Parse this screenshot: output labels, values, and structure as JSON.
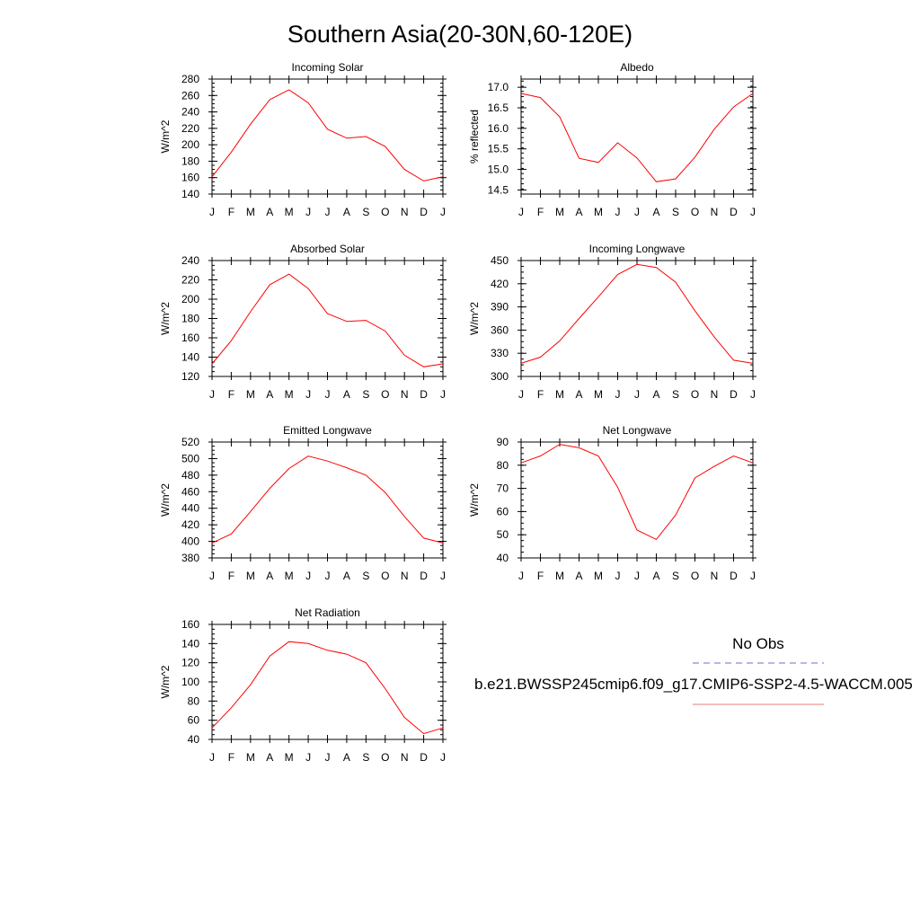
{
  "figure": {
    "title": "Southern Asia(20-30N,60-120E)"
  },
  "legend": {
    "entries": [
      {
        "label": "No Obs",
        "color": "#6b6bd6",
        "style": "dashed"
      },
      {
        "label": "b.e21.BWSSP245cmip6.f09_g17.CMIP6-SSP2-4.5-WACCM.005",
        "color": "#e87a7a",
        "style": "solid"
      }
    ]
  },
  "chart_data": [
    {
      "type": "line",
      "title": "Incoming Solar",
      "ylabel": "W/m^2",
      "categories": [
        "J",
        "F",
        "M",
        "A",
        "M",
        "J",
        "J",
        "A",
        "S",
        "O",
        "N",
        "D",
        "J"
      ],
      "ylim": [
        140,
        280
      ],
      "yticks": [
        140,
        160,
        180,
        200,
        220,
        240,
        260,
        280
      ],
      "ytick_labels": [
        "140",
        "160",
        "180",
        "200",
        "220",
        "240",
        "260",
        "280"
      ],
      "series": [
        {
          "color": "#ff0000",
          "values": [
            161,
            191,
            225,
            255,
            267,
            251,
            219,
            208,
            210,
            198,
            170,
            156,
            161
          ]
        }
      ]
    },
    {
      "type": "line",
      "title": "Albedo",
      "ylabel": "% reflected",
      "categories": [
        "J",
        "F",
        "M",
        "A",
        "M",
        "J",
        "J",
        "A",
        "S",
        "O",
        "N",
        "D",
        "J"
      ],
      "ylim": [
        14.4,
        17.2
      ],
      "yticks": [
        14.5,
        15.0,
        15.5,
        16.0,
        16.5,
        17.0
      ],
      "ytick_labels": [
        "14.5",
        "15.0",
        "15.5",
        "16.0",
        "16.5",
        "17.0"
      ],
      "series": [
        {
          "color": "#ff0000",
          "values": [
            16.85,
            16.75,
            16.28,
            15.27,
            15.17,
            15.65,
            15.28,
            14.7,
            14.77,
            15.3,
            15.98,
            16.52,
            16.85
          ]
        }
      ]
    },
    {
      "type": "line",
      "title": "Absorbed Solar",
      "ylabel": "W/m^2",
      "categories": [
        "J",
        "F",
        "M",
        "A",
        "M",
        "J",
        "J",
        "A",
        "S",
        "O",
        "N",
        "D",
        "J"
      ],
      "ylim": [
        120,
        240
      ],
      "yticks": [
        120,
        140,
        160,
        180,
        200,
        220,
        240
      ],
      "ytick_labels": [
        "120",
        "140",
        "160",
        "180",
        "200",
        "220",
        "240"
      ],
      "series": [
        {
          "color": "#ff0000",
          "values": [
            133,
            157,
            187,
            215,
            226,
            211,
            185,
            177,
            178,
            167,
            142,
            130,
            133
          ]
        }
      ]
    },
    {
      "type": "line",
      "title": "Incoming Longwave",
      "ylabel": "W/m^2",
      "categories": [
        "J",
        "F",
        "M",
        "A",
        "M",
        "J",
        "J",
        "A",
        "S",
        "O",
        "N",
        "D",
        "J"
      ],
      "ylim": [
        300,
        450
      ],
      "yticks": [
        300,
        330,
        360,
        390,
        420,
        450
      ],
      "ytick_labels": [
        "300",
        "330",
        "360",
        "390",
        "420",
        "450"
      ],
      "series": [
        {
          "color": "#ff0000",
          "values": [
            317,
            325,
            346,
            375,
            403,
            432,
            445,
            441,
            422,
            385,
            351,
            321,
            317
          ]
        }
      ]
    },
    {
      "type": "line",
      "title": "Emitted Longwave",
      "ylabel": "W/m^2",
      "categories": [
        "J",
        "F",
        "M",
        "A",
        "M",
        "J",
        "J",
        "A",
        "S",
        "O",
        "N",
        "D",
        "J"
      ],
      "ylim": [
        380,
        520
      ],
      "yticks": [
        380,
        400,
        420,
        440,
        460,
        480,
        500,
        520
      ],
      "ytick_labels": [
        "380",
        "400",
        "420",
        "440",
        "460",
        "480",
        "500",
        "520"
      ],
      "series": [
        {
          "color": "#ff0000",
          "values": [
            398,
            409,
            436,
            464,
            488,
            503,
            497,
            489,
            480,
            459,
            430,
            404,
            398
          ]
        }
      ]
    },
    {
      "type": "line",
      "title": "Net Longwave",
      "ylabel": "W/m^2",
      "categories": [
        "J",
        "F",
        "M",
        "A",
        "M",
        "J",
        "J",
        "A",
        "S",
        "O",
        "N",
        "D",
        "J"
      ],
      "ylim": [
        40,
        90
      ],
      "yticks": [
        40,
        50,
        60,
        70,
        80,
        90
      ],
      "ytick_labels": [
        "40",
        "50",
        "60",
        "70",
        "80",
        "90"
      ],
      "series": [
        {
          "color": "#ff0000",
          "values": [
            81,
            84,
            89,
            87.5,
            84,
            70.5,
            52,
            48,
            58.5,
            74.5,
            79.5,
            84,
            81
          ]
        }
      ]
    },
    {
      "type": "line",
      "title": "Net Radiation",
      "ylabel": "W/m^2",
      "categories": [
        "J",
        "F",
        "M",
        "A",
        "M",
        "J",
        "J",
        "A",
        "S",
        "O",
        "N",
        "D",
        "J"
      ],
      "ylim": [
        40,
        160
      ],
      "yticks": [
        40,
        60,
        80,
        100,
        120,
        140,
        160
      ],
      "ytick_labels": [
        "40",
        "60",
        "80",
        "100",
        "120",
        "140",
        "160"
      ],
      "series": [
        {
          "color": "#ff0000",
          "values": [
            52,
            73,
            97,
            127,
            142,
            140,
            133,
            129,
            120,
            93,
            63,
            46,
            52
          ]
        }
      ]
    }
  ]
}
